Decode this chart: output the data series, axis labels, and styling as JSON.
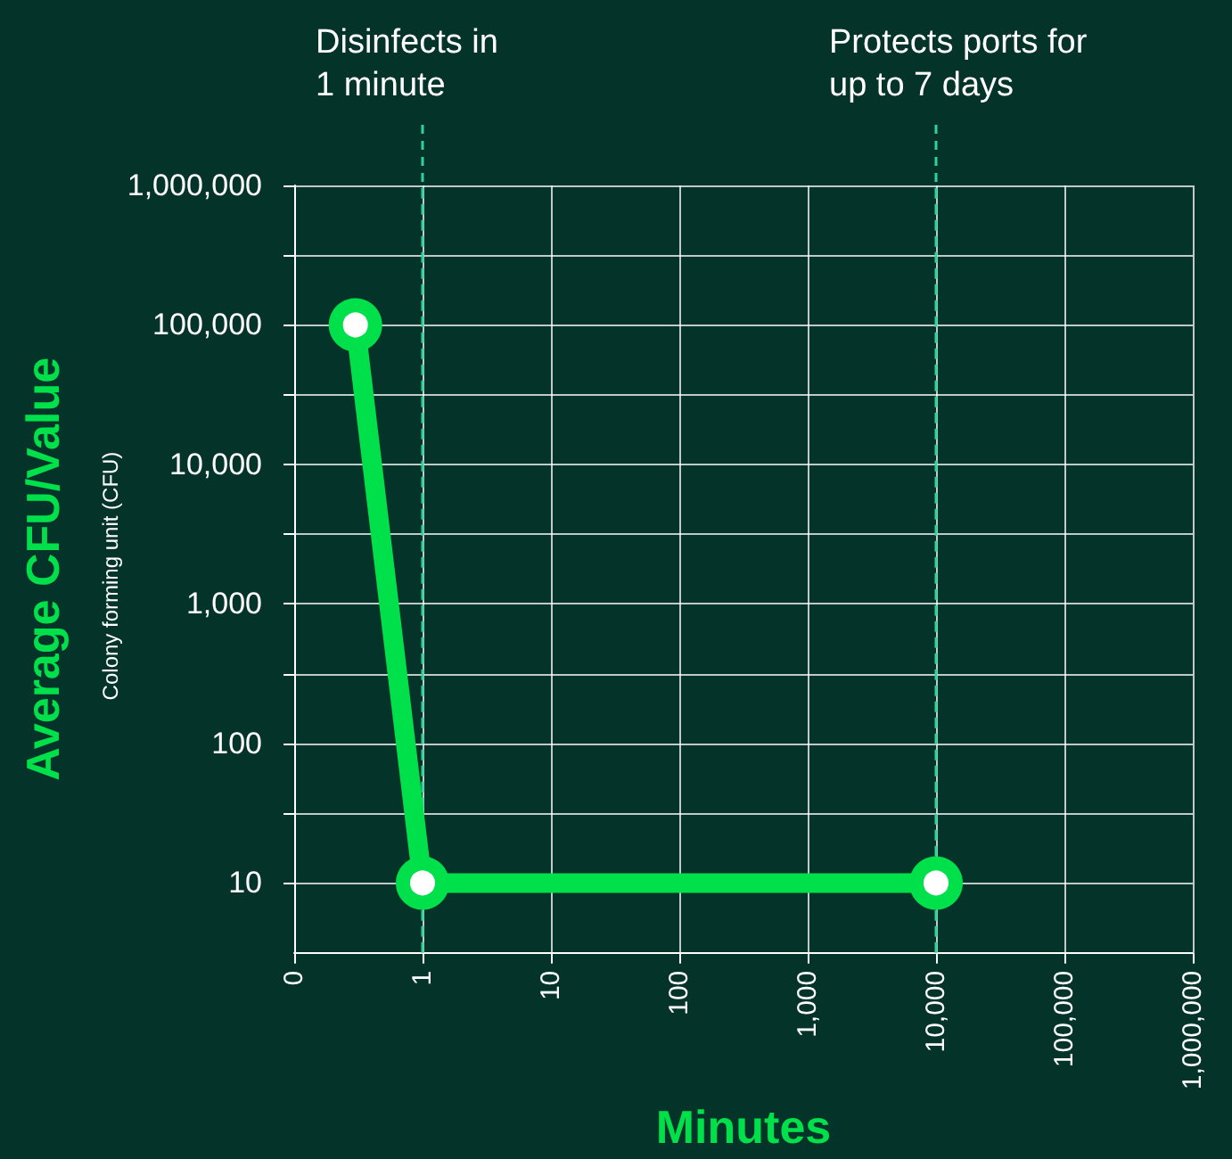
{
  "chart_data": {
    "type": "line",
    "xlabel": "Minutes",
    "ylabel": "Average CFU/Value",
    "annotations": [
      "Colony forming unit (CFU)"
    ],
    "log": "xy",
    "x": [
      0.3,
      1,
      10000
    ],
    "series": [
      {
        "color": "#00e04b",
        "values": [
          100000,
          10,
          10
        ]
      }
    ],
    "xlim": [
      0.1,
      1000000
    ],
    "xticks": [
      {
        "value": 0.1,
        "label": "0"
      },
      1,
      10,
      100,
      {
        "value": 1000,
        "label": "1,000"
      },
      {
        "value": 10000,
        "label": "10,000"
      },
      {
        "value": 100000,
        "label": "100,000"
      },
      {
        "value": 1000000,
        "label": "1,000,000"
      }
    ],
    "ylim": [
      3.16,
      1000000
    ],
    "yticks": [
      {
        "value": 10,
        "label": "10"
      },
      {
        "value": 31.6,
        "label": null
      },
      {
        "value": 100,
        "label": "100"
      },
      {
        "value": 316,
        "label": null
      },
      {
        "value": 1000,
        "label": "1,000"
      },
      {
        "value": 3160,
        "label": null
      },
      {
        "value": 10000,
        "label": "10,000"
      },
      {
        "value": 31600,
        "label": null
      },
      {
        "value": 100000,
        "label": "100,000"
      },
      {
        "value": 316000,
        "label": null
      },
      {
        "value": 1000000,
        "label": "1,000,000"
      }
    ],
    "ref_lines": [
      {
        "axis": "x",
        "value": 1,
        "label": "Disinfects in\n1 minute",
        "color": "#2fd39a",
        "line_style": "dashed"
      },
      {
        "axis": "x",
        "value": 10000,
        "label": "Protects ports for\nup to 7 days",
        "color": "#2fd39a",
        "line_style": "dashed"
      }
    ],
    "grid": true,
    "marker": "circle",
    "line_style": "solid"
  }
}
